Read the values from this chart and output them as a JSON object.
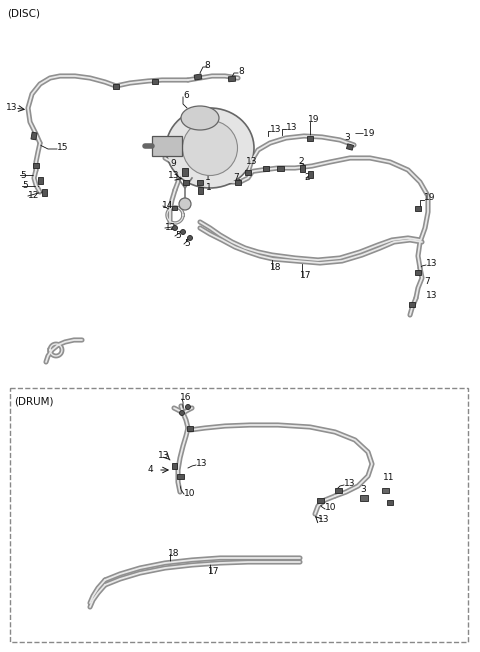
{
  "bg_color": "#ffffff",
  "text_color": "#111111",
  "disc_label": "(DISC)",
  "drum_label": "(DRUM)",
  "fig_width": 4.8,
  "fig_height": 6.52,
  "dpi": 100,
  "tube_outer": "#909090",
  "tube_inner": "#e8e8e8",
  "conn_face": "#555555",
  "conn_edge": "#222222"
}
